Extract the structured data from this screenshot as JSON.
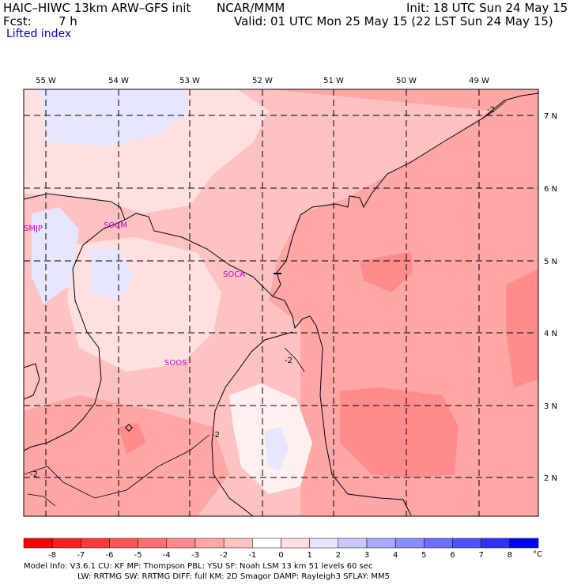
{
  "header": {
    "title_left": "HAIC–HIWC 13km ARW–GFS init",
    "center": "NCAR/MMM",
    "init": "Init: 18 UTC Sun 24 May 15",
    "fcst_label": "Fcst:",
    "fcst_value": "7 h",
    "valid": "Valid: 01 UTC Mon 25 May 15 (22 LST Sun 24 May 15)",
    "field": "Lifted index"
  },
  "map": {
    "lon_labels": [
      "55 W",
      "54 W",
      "53 W",
      "52 W",
      "51 W",
      "50 W",
      "49 W"
    ],
    "lat_labels": [
      "7 N",
      "6 N",
      "5 N",
      "4 N",
      "3 N",
      "2 N"
    ],
    "stations": [
      "SMJP",
      "SOCM",
      "SOCA",
      "SOOS"
    ],
    "contour_labels": [
      "-2",
      "-2",
      "-2",
      "-2"
    ]
  },
  "colorbar": {
    "labels": [
      "-8",
      "-7",
      "-6",
      "-5",
      "-4",
      "-3",
      "-2",
      "-1",
      "0",
      "1",
      "2",
      "3",
      "4",
      "5",
      "6",
      "7",
      "8"
    ],
    "unit": "°C",
    "colors": [
      "#ff0000",
      "#ff2020",
      "#ff3a3a",
      "#ff5555",
      "#ff7070",
      "#ff8c8c",
      "#ffa6a6",
      "#ffc2c2",
      "#ffe0e0",
      "#e6e6ff",
      "#c8c8ff",
      "#aaaaff",
      "#8c8cff",
      "#6e6eff",
      "#5050ff",
      "#3030ff",
      "#0000ff"
    ]
  },
  "footer": {
    "line1": "Model Info: V3.6.1     CU: KF       MP: Thompson      PBL: YSU       SF: Noah LSM      13 km    51 levels    60 sec",
    "line2": "LW: RRTMG      SW: RRTMG   DIFF: full     KM: 2D Smagor DAMP: Rayleigh3   SFLAY: MM5"
  }
}
